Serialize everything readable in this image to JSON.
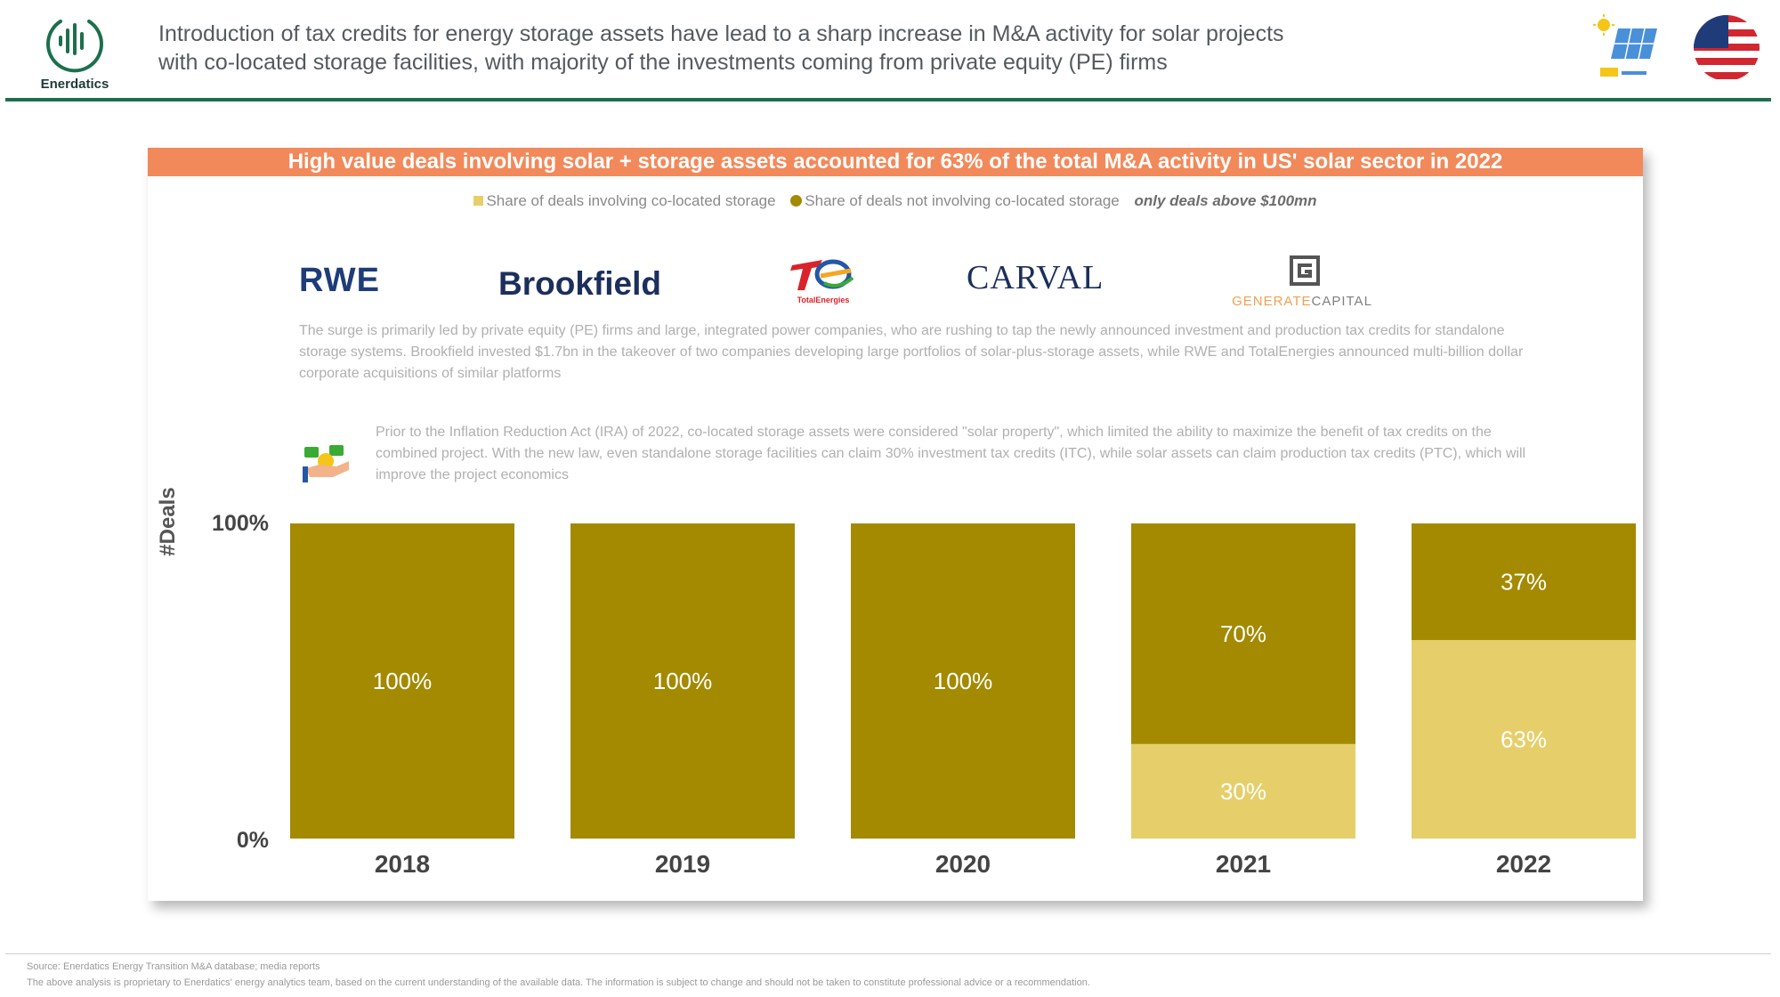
{
  "header": {
    "logo_text": "Enerdatics",
    "headline_line1": "Introduction of tax credits for energy storage assets have lead to a sharp increase in M&A activity for solar projects",
    "headline_line2": "with co-located storage facilities, with majority of the investments coming from private equity (PE) firms",
    "icons": [
      "enerdatics-logo-icon",
      "solar-panel-icon",
      "us-flag-icon"
    ]
  },
  "banner": {
    "text": "High value deals involving solar + storage assets accounted for 63% of the total M&A activity in US' solar sector in 2022"
  },
  "legend": {
    "item1": "Share of deals involving co-located storage",
    "item2": "Share of deals not involving co-located storage",
    "note": "only deals above $100mn"
  },
  "companies": {
    "rwe": "RWE",
    "brookfield": "Brookfield",
    "totalenergies": "TotalEnergies",
    "carval": "CARVAL",
    "generate_part1": "GENERATE",
    "generate_part2": "CAPITAL"
  },
  "paragraphs": {
    "surge": "The surge is primarily led by private equity (PE) firms and large, integrated power companies, who are rushing to tap the newly announced investment and production tax credits for standalone storage systems. Brookfield invested $1.7bn in the takeover of two companies developing large portfolios of solar-plus-storage assets, while RWE and TotalEnergies announced multi-billion dollar corporate acquisitions of similar platforms",
    "ira": "Prior to the Inflation Reduction Act (IRA) of 2022, co-located storage assets were considered \"solar property\", which limited the ability to maximize the benefit of tax credits on the combined project. With the new law, even standalone storage facilities can claim 30% investment tax credits (ITC), while solar assets can claim production tax credits (PTC), which will improve the project economics"
  },
  "colors": {
    "with_storage": "#e6cf6a",
    "without_storage": "#a38a00",
    "banner": "#f2895a",
    "header_rule": "#1d6f4d"
  },
  "chart_data": {
    "type": "bar",
    "stacked": true,
    "normalized": true,
    "categories": [
      "2018",
      "2019",
      "2020",
      "2021",
      "2022"
    ],
    "series": [
      {
        "name": "Share of deals involving co-located storage",
        "values": [
          0,
          0,
          0,
          30,
          63
        ],
        "color": "#e6cf6a"
      },
      {
        "name": "Share of deals not involving co-located storage",
        "values": [
          100,
          100,
          100,
          70,
          37
        ],
        "color": "#a38a00"
      }
    ],
    "ylabel": "#Deals",
    "ytick_labels": [
      "0%",
      "100%"
    ],
    "ylim": [
      0,
      100
    ],
    "value_suffix": "%",
    "grid": false,
    "legend_position": "top"
  },
  "footer": {
    "source": "Source: Enerdatics Energy Transition M&A database; media reports",
    "disclaimer": "The above analysis is proprietary to Enerdatics' energy analytics team, based on the current understanding of the available data. The information is subject to change and should not be taken to constitute professional advice or a recommendation."
  }
}
